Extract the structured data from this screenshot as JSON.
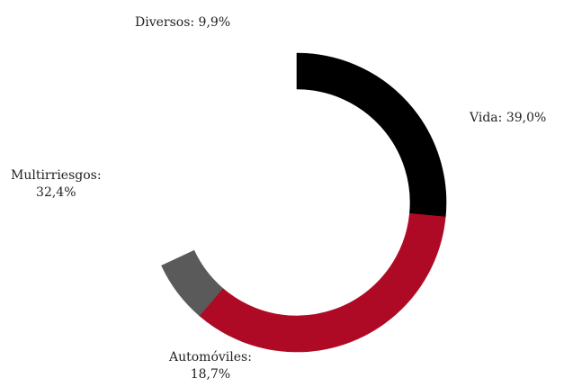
{
  "chart_data": {
    "type": "pie",
    "variant": "partial-donut",
    "title": "",
    "slices": [
      {
        "name": "Vida",
        "value": 39.0,
        "display": "39,0%",
        "color": "#000000",
        "label_lines": [
          "Vida: 39,0%"
        ]
      },
      {
        "name": "Automóviles",
        "value": 18.7,
        "display": "18,7%",
        "color": "#ae0a26",
        "label_lines": [
          "Automóviles:",
          "18,7%"
        ]
      },
      {
        "name": "Multirriesgos",
        "value": 32.4,
        "display": "32,4%",
        "color": "#ae0a26",
        "label_lines": [
          "Multirriesgos:",
          "32,4%"
        ]
      },
      {
        "name": "Diversos",
        "value": 9.9,
        "display": "9,9%",
        "color": "#5a5a5a",
        "label_lines": [
          "Diversos: 9,9%"
        ]
      }
    ],
    "legend": "none",
    "grid": false
  }
}
